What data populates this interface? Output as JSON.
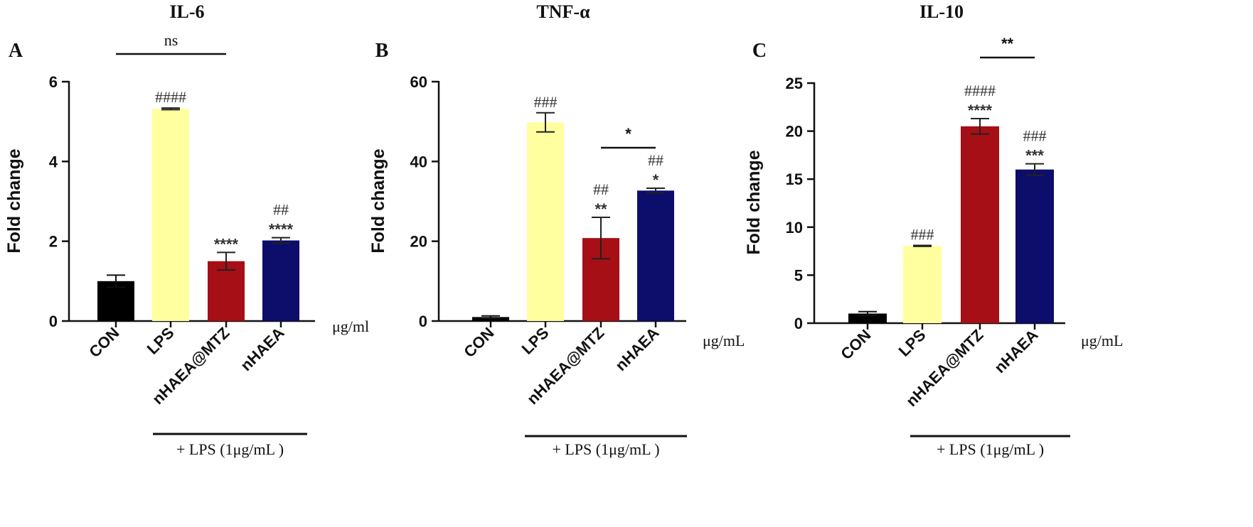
{
  "chart_data": [
    {
      "type": "bar",
      "panel_label": "A",
      "title": "IL-6",
      "ylabel": "Fold change",
      "ylim": [
        0,
        6
      ],
      "yticks": [
        0,
        2,
        4,
        6
      ],
      "categories": [
        "CON",
        "LPS",
        "nHAEA@MTZ",
        "nHAEA"
      ],
      "values": [
        1.0,
        5.32,
        1.5,
        2.02
      ],
      "errors": [
        0.15,
        0.02,
        0.22,
        0.07
      ],
      "colors": [
        "#000000",
        "#ffffa0",
        "#a50f15",
        "#0d0d6b"
      ],
      "annotations": [
        {
          "category": "LPS",
          "lines": [
            "####"
          ]
        },
        {
          "category": "nHAEA@MTZ",
          "lines": [
            "****"
          ]
        },
        {
          "category": "nHAEA",
          "lines": [
            "##",
            "****"
          ]
        }
      ],
      "brackets": [
        {
          "from": "CON",
          "to": "nHAEA@MTZ",
          "label": "ns"
        }
      ],
      "unit": "μg/ml",
      "group_label": "+ LPS (1μg/mL )"
    },
    {
      "type": "bar",
      "panel_label": "B",
      "title": "TNF-α",
      "ylabel": "Fold change",
      "ylim": [
        0,
        60
      ],
      "yticks": [
        0,
        20,
        40,
        60
      ],
      "categories": [
        "CON",
        "LPS",
        "nHAEA@MTZ",
        "nHAEA"
      ],
      "values": [
        1.0,
        49.8,
        20.8,
        32.7
      ],
      "errors": [
        0.3,
        2.4,
        5.2,
        0.6
      ],
      "colors": [
        "#000000",
        "#ffffa0",
        "#a50f15",
        "#0d0d6b"
      ],
      "annotations": [
        {
          "category": "LPS",
          "lines": [
            "###"
          ]
        },
        {
          "category": "nHAEA@MTZ",
          "lines": [
            "##",
            "**"
          ]
        },
        {
          "category": "nHAEA",
          "lines": [
            "##",
            "*"
          ]
        }
      ],
      "brackets": [
        {
          "from": "nHAEA@MTZ",
          "to": "nHAEA",
          "label": "*"
        }
      ],
      "unit": "μg/mL",
      "group_label": "+ LPS (1μg/mL )"
    },
    {
      "type": "bar",
      "panel_label": "C",
      "title": "IL-10",
      "ylabel": "Fold change",
      "ylim": [
        0,
        25
      ],
      "yticks": [
        0,
        5,
        10,
        15,
        20,
        25
      ],
      "categories": [
        "CON",
        "LPS",
        "nHAEA@MTZ",
        "nHAEA"
      ],
      "values": [
        1.0,
        8.05,
        20.5,
        16.0
      ],
      "errors": [
        0.2,
        0.05,
        0.8,
        0.6
      ],
      "colors": [
        "#000000",
        "#ffffa0",
        "#a50f15",
        "#0d0d6b"
      ],
      "annotations": [
        {
          "category": "LPS",
          "lines": [
            "###"
          ]
        },
        {
          "category": "nHAEA@MTZ",
          "lines": [
            "####",
            "****"
          ]
        },
        {
          "category": "nHAEA",
          "lines": [
            "###",
            "***"
          ]
        }
      ],
      "brackets": [
        {
          "from": "nHAEA@MTZ",
          "to": "nHAEA",
          "label": "**"
        }
      ],
      "unit": "μg/mL",
      "group_label": "+ LPS (1μg/mL )"
    }
  ]
}
